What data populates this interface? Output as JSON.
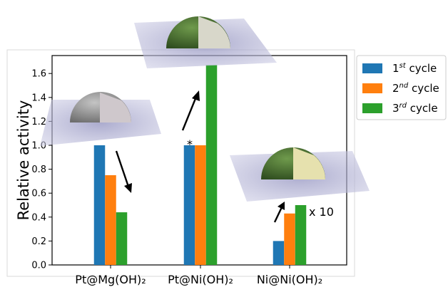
{
  "chart_data": {
    "type": "bar",
    "categories": [
      "Pt@Mg(OH)₂",
      "Pt@Ni(OH)₂",
      "Ni@Ni(OH)₂"
    ],
    "series": [
      {
        "name": "1st cycle",
        "color": "#1f77b4",
        "values": [
          1.0,
          1.0,
          0.2
        ]
      },
      {
        "name": "2nd cycle",
        "color": "#ff7f0e",
        "values": [
          0.75,
          1.0,
          0.43
        ]
      },
      {
        "name": "3rd cycle",
        "color": "#2ca02c",
        "values": [
          0.44,
          1.67,
          0.5
        ]
      }
    ],
    "legend": [
      {
        "base": "1",
        "sup": "st",
        "rest": " cycle"
      },
      {
        "base": "2",
        "sup": "nd",
        "rest": " cycle"
      },
      {
        "base": "3",
        "sup": "rd",
        "rest": " cycle"
      }
    ],
    "ylabel": "Relative activity",
    "ylim": [
      0,
      1.75
    ],
    "yticks": [
      "0.0",
      "0.2",
      "0.4",
      "0.6",
      "0.8",
      "1.0",
      "1.2",
      "1.4",
      "1.6"
    ],
    "legend_position": "outside-top-right",
    "grid": false,
    "annotations": {
      "asterisk": "*",
      "multiplier": "x 10"
    },
    "insets": [
      {
        "name": "grey-hemisphere",
        "colors": {
          "shell": "#9a9a9a",
          "core": "#c9c3c6"
        }
      },
      {
        "name": "green-hemisphere-large",
        "colors": {
          "shell": "#4f7a35",
          "core": "#d7d6c7"
        }
      },
      {
        "name": "green-hemisphere-small",
        "colors": {
          "shell": "#4f7a35",
          "core": "#e6e1b0"
        }
      }
    ]
  }
}
